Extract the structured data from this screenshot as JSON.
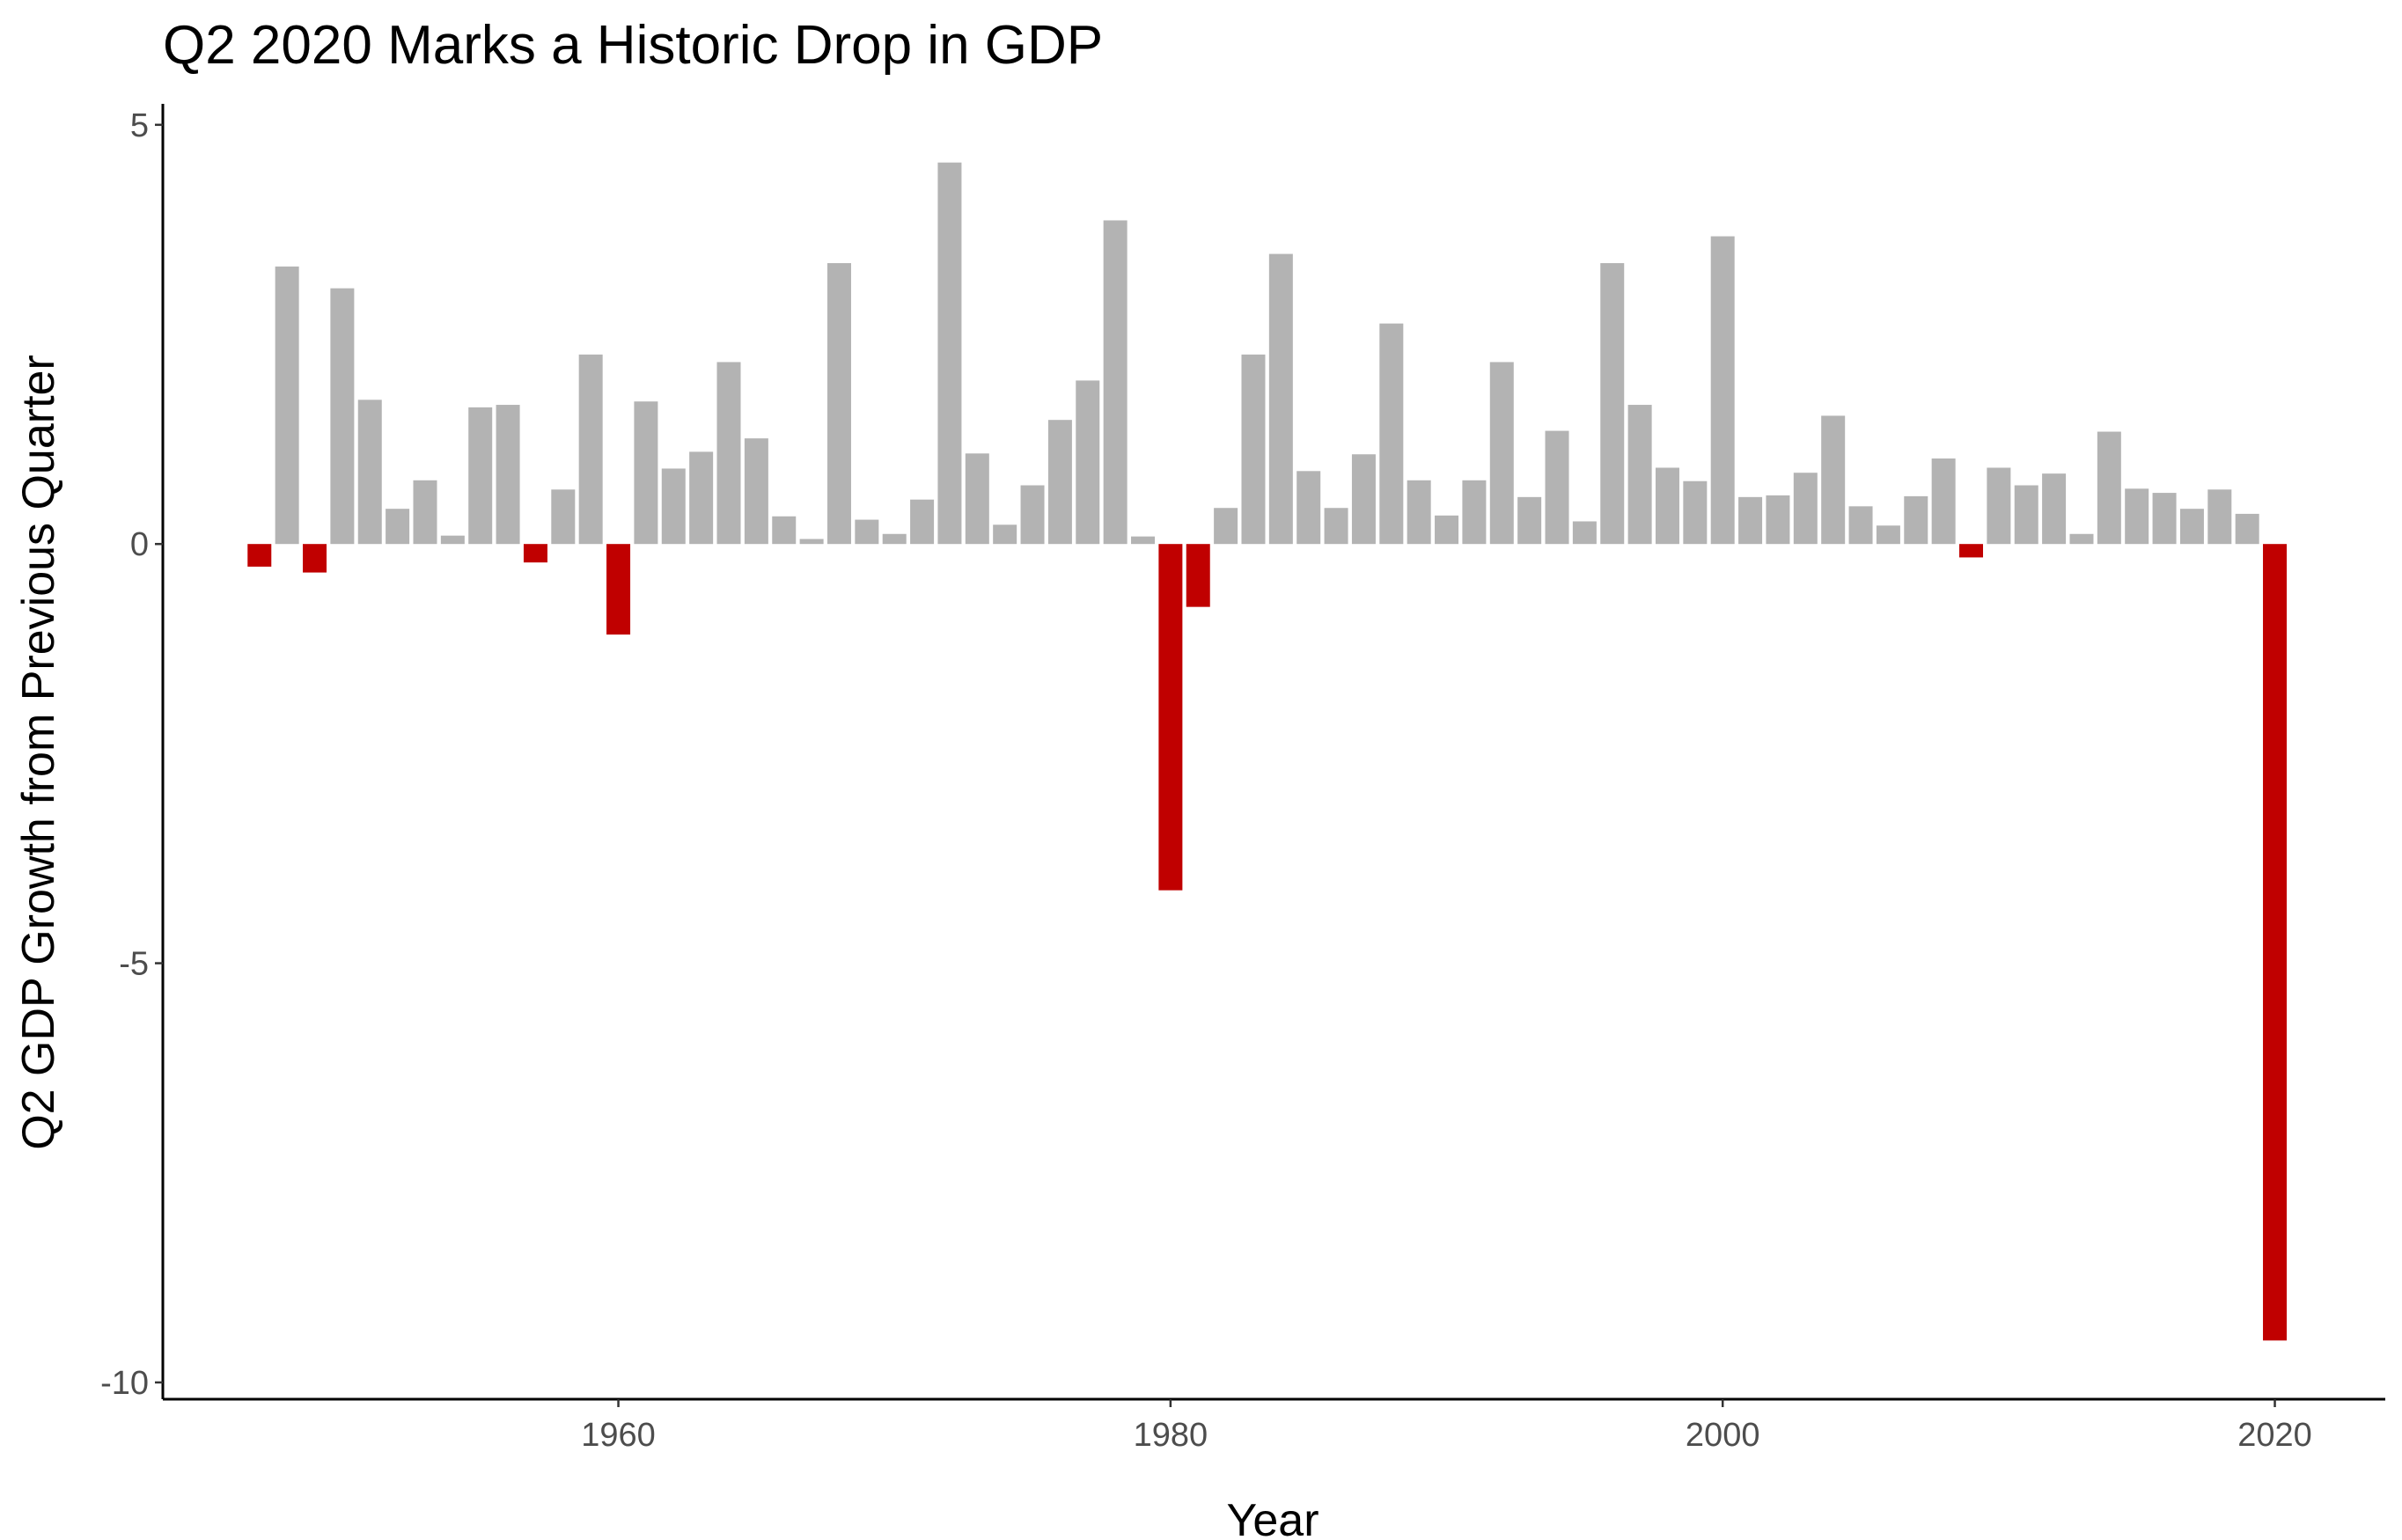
{
  "chart_data": {
    "type": "bar",
    "title": "Q2 2020 Marks a Historic Drop in GDP",
    "xlabel": "Year",
    "ylabel": "Q2 GDP Growth from Previous Quarter",
    "xlim": [
      1943.5,
      2024.0
    ],
    "ylim": [
      -10.2,
      5.25
    ],
    "xticks": [
      1960,
      1980,
      2000,
      2020
    ],
    "yticks": [
      5,
      0,
      -5,
      -10
    ],
    "xtick_labels": [
      "1960",
      "1980",
      "2000",
      "2020"
    ],
    "ytick_labels": [
      "5",
      "0",
      "-5",
      "-10"
    ],
    "grid": false,
    "legend": "none",
    "colors": {
      "positive": "#b3b3b3",
      "negative": "#c00000",
      "axis": "#000000",
      "tick_text": "#4d4d4d"
    },
    "x": [
      1947,
      1948,
      1949,
      1950,
      1951,
      1952,
      1953,
      1954,
      1955,
      1956,
      1957,
      1958,
      1959,
      1960,
      1961,
      1962,
      1963,
      1964,
      1965,
      1966,
      1967,
      1968,
      1969,
      1970,
      1971,
      1972,
      1973,
      1974,
      1975,
      1976,
      1977,
      1978,
      1979,
      1980,
      1981,
      1982,
      1983,
      1984,
      1985,
      1986,
      1987,
      1988,
      1989,
      1990,
      1991,
      1992,
      1993,
      1994,
      1995,
      1996,
      1997,
      1998,
      1999,
      2000,
      2001,
      2002,
      2003,
      2004,
      2005,
      2006,
      2007,
      2008,
      2009,
      2010,
      2011,
      2012,
      2013,
      2014,
      2015,
      2016,
      2017,
      2018,
      2019,
      2020
    ],
    "values": [
      -0.27,
      3.31,
      -0.34,
      3.05,
      1.72,
      0.42,
      0.76,
      0.1,
      1.63,
      1.66,
      -0.22,
      0.65,
      2.26,
      -1.08,
      1.7,
      0.9,
      1.1,
      2.17,
      1.26,
      0.33,
      0.06,
      3.35,
      0.29,
      0.12,
      0.53,
      4.55,
      1.08,
      0.23,
      0.7,
      1.48,
      1.95,
      3.86,
      0.09,
      -4.13,
      -0.75,
      0.43,
      2.26,
      3.46,
      0.87,
      0.43,
      1.07,
      2.63,
      0.76,
      0.34,
      0.76,
      2.17,
      0.56,
      1.35,
      0.27,
      3.35,
      1.66,
      0.91,
      0.75,
      3.67,
      0.56,
      0.58,
      0.85,
      1.53,
      0.45,
      0.22,
      0.57,
      1.02,
      -0.16,
      0.91,
      0.7,
      0.84,
      0.12,
      1.34,
      0.66,
      0.61,
      0.42,
      0.65,
      0.36,
      -9.5
    ]
  }
}
